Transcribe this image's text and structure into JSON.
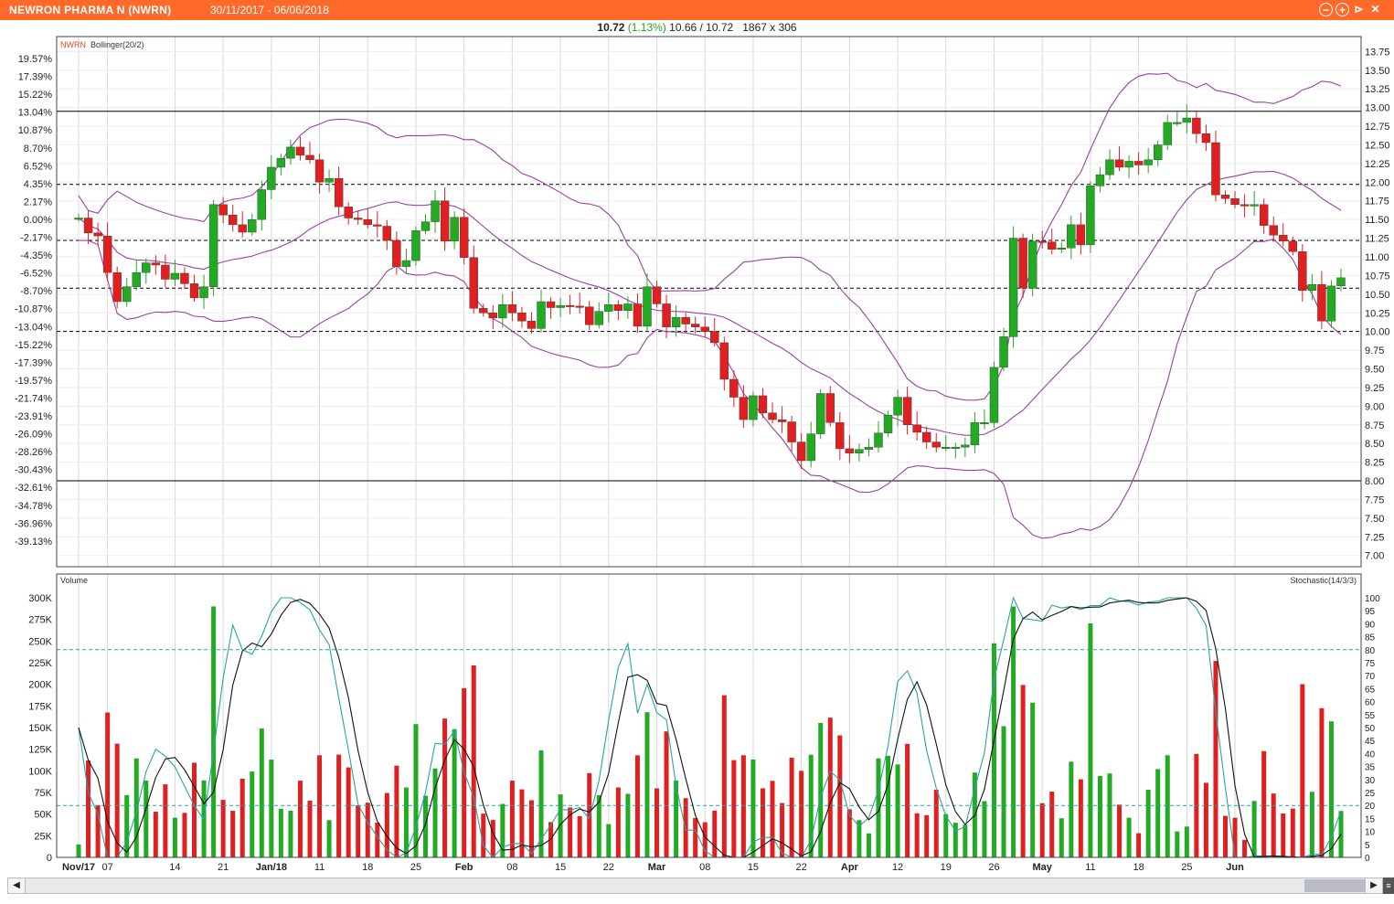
{
  "window": {
    "title": "NEWRON PHARMA N (NWRN)",
    "date_range": "30/11/2017 - 06/06/2018",
    "buttons": [
      "minimize",
      "maximize",
      "close",
      "pin"
    ]
  },
  "quote": {
    "last": "10.72",
    "change": "(1.13%)",
    "low_high": "10.66 / 10.72",
    "size": "1867 x 306"
  },
  "panels": {
    "price_label_symbol": "NWRN",
    "price_label_indicator": "Bollinger(20/2)",
    "volume_label": "Volume",
    "stoch_label": "Stochastic(14/3/3)"
  },
  "colors": {
    "up": "#22aa22",
    "down": "#e02020",
    "bollinger": "#9b3fa6",
    "stoch_k": "#2aa3a3",
    "stoch_d": "#111111",
    "grid": "#d8d8d8"
  },
  "chart_data": {
    "type": "candlestick",
    "x_tick_labels": [
      "Nov/17",
      "07",
      "14",
      "21",
      "Jan/18",
      "11",
      "18",
      "25",
      "Feb",
      "08",
      "15",
      "22",
      "Mar",
      "08",
      "15",
      "22",
      "Apr",
      "12",
      "19",
      "26",
      "May",
      "11",
      "18",
      "25",
      "Jun"
    ],
    "price_axis": {
      "ylim": [
        6.85,
        13.95
      ],
      "ticks": [
        7.0,
        7.25,
        7.5,
        7.75,
        8.0,
        8.25,
        8.5,
        8.75,
        9.0,
        9.25,
        9.5,
        9.75,
        10.0,
        10.25,
        10.5,
        10.75,
        11.0,
        11.25,
        11.5,
        11.75,
        12.0,
        12.25,
        12.5,
        12.75,
        13.0,
        13.25,
        13.5,
        13.75
      ]
    },
    "pct_axis": {
      "ticks": [
        "19.57%",
        "17.39%",
        "15.22%",
        "13.04%",
        "10.87%",
        "8.70%",
        "6.52%",
        "4.35%",
        "2.17%",
        "0.00%",
        "-2.17%",
        "-4.35%",
        "-6.52%",
        "-8.70%",
        "-10.87%",
        "-13.04%",
        "-15.22%",
        "-17.39%",
        "-19.57%",
        "-21.74%",
        "-23.91%",
        "-26.09%",
        "-28.26%",
        "-30.43%",
        "-32.61%",
        "-34.78%",
        "-36.96%",
        "-39.13%"
      ]
    },
    "horizontal_lines": [
      {
        "price": 12.95,
        "style": "solid"
      },
      {
        "price": 11.97,
        "style": "dashed"
      },
      {
        "price": 11.22,
        "style": "dashed"
      },
      {
        "price": 10.58,
        "style": "dashed"
      },
      {
        "price": 10.0,
        "style": "dashed"
      },
      {
        "price": 8.0,
        "style": "solid"
      }
    ],
    "candles_close": [
      11.52,
      11.32,
      11.28,
      10.79,
      10.4,
      10.6,
      10.79,
      10.92,
      10.89,
      10.7,
      10.78,
      10.64,
      10.45,
      10.6,
      11.7,
      11.56,
      11.43,
      11.33,
      11.5,
      11.9,
      12.2,
      12.32,
      12.47,
      12.36,
      12.3,
      12.0,
      12.05,
      11.67,
      11.52,
      11.5,
      11.43,
      11.41,
      11.22,
      10.87,
      10.95,
      11.35,
      11.47,
      11.75,
      11.21,
      11.53,
      10.99,
      10.31,
      10.25,
      10.18,
      10.36,
      10.25,
      10.14,
      10.04,
      10.4,
      10.32,
      10.35,
      10.34,
      10.33,
      10.09,
      10.27,
      10.36,
      10.28,
      10.37,
      10.07,
      10.6,
      10.37,
      10.06,
      10.19,
      10.1,
      10.06,
      10.0,
      9.85,
      9.36,
      9.12,
      8.82,
      9.14,
      8.91,
      8.82,
      8.79,
      8.52,
      8.27,
      8.63,
      9.17,
      8.78,
      8.43,
      8.37,
      8.42,
      8.45,
      8.64,
      8.88,
      9.12,
      8.75,
      8.65,
      8.52,
      8.45,
      8.45,
      8.45,
      8.48,
      8.78,
      8.78,
      9.52,
      9.93,
      11.25,
      10.58,
      11.21,
      11.2,
      11.1,
      11.12,
      11.43,
      11.16,
      11.95,
      12.1,
      12.3,
      12.2,
      12.28,
      12.23,
      12.3,
      12.5,
      12.8,
      12.8,
      12.86,
      12.65,
      12.53,
      11.83,
      11.78,
      11.7,
      11.68,
      11.7,
      11.42,
      11.29,
      11.21,
      11.07,
      10.55,
      10.63,
      10.14,
      10.61,
      10.72
    ],
    "volume_axis": {
      "ticks": [
        "0",
        "25K",
        "50K",
        "75K",
        "100K",
        "125K",
        "150K",
        "175K",
        "200K",
        "225K",
        "250K",
        "275K",
        "300K"
      ],
      "dashed_level": 60000
    },
    "stoch_axis": {
      "ticks": [
        0,
        5,
        10,
        15,
        20,
        25,
        30,
        35,
        40,
        45,
        50,
        55,
        60,
        65,
        70,
        75,
        80,
        85,
        90,
        95,
        100
      ],
      "overbought": 80,
      "oversold": 20
    }
  }
}
